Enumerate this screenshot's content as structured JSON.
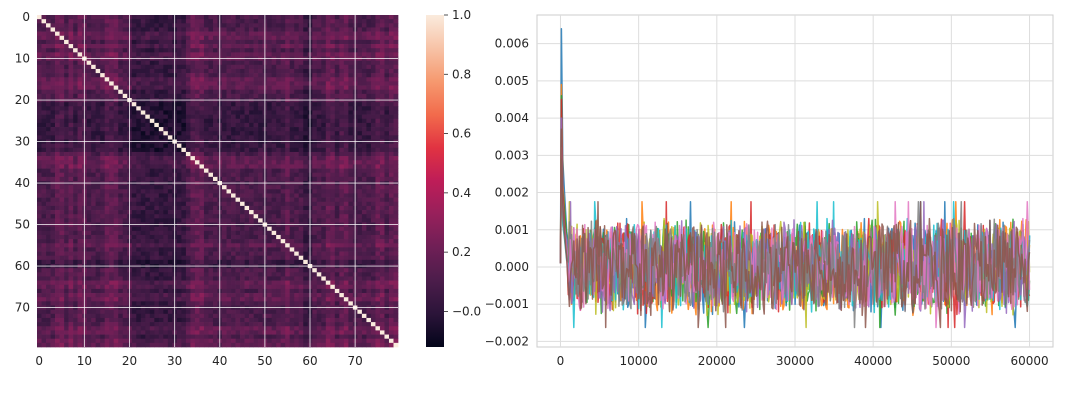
{
  "chart_data": [
    {
      "type": "heatmap",
      "description_rows": 80,
      "n": 80,
      "xticks": [
        "0",
        "10",
        "20",
        "30",
        "40",
        "50",
        "60",
        "70"
      ],
      "yticks": [
        "0",
        "10",
        "20",
        "30",
        "40",
        "50",
        "60",
        "70"
      ],
      "tick_values": [
        0,
        10,
        20,
        30,
        40,
        50,
        60,
        70
      ],
      "diagonal_value": 1.0,
      "colorbar": {
        "ticks": [
          "−0.0",
          "0.2",
          "0.4",
          "0.6",
          "0.8",
          "1.0"
        ],
        "tick_values": [
          0.0,
          0.2,
          0.4,
          0.6,
          0.8,
          1.0
        ],
        "vmin": -0.12,
        "vmax": 1.0
      },
      "high_columns": [
        4,
        5,
        7,
        9,
        10,
        15,
        16,
        17,
        34,
        35,
        36,
        55,
        64,
        65,
        67,
        68,
        75,
        76,
        78,
        79
      ],
      "low_columns": [
        21,
        22,
        23,
        24,
        25,
        26,
        27,
        28,
        29,
        30,
        31,
        32,
        59,
        60
      ],
      "grid": true
    },
    {
      "type": "line",
      "xticks": [
        "0",
        "10000",
        "20000",
        "30000",
        "40000",
        "50000",
        "60000"
      ],
      "x_tick_values": [
        0,
        10000,
        20000,
        30000,
        40000,
        50000,
        60000
      ],
      "yticks": [
        "−0.002",
        "−0.001",
        "0.000",
        "0.001",
        "0.002",
        "0.003",
        "0.004",
        "0.005",
        "0.006"
      ],
      "y_tick_values": [
        -0.002,
        -0.001,
        0.0,
        0.001,
        0.002,
        0.003,
        0.004,
        0.005,
        0.006
      ],
      "xlim": [
        -3000,
        63000
      ],
      "ylim": [
        -0.00215,
        0.00677
      ],
      "x_max": 60000,
      "peak_values": [
        0.0064,
        0.0049,
        0.0046,
        0.0045,
        0.004,
        0.0037,
        0.0032,
        0.0029,
        0.0027,
        0.0025
      ],
      "steady_range": [
        -0.0013,
        0.0013
      ],
      "series_colors": [
        "#1f77b4",
        "#ff7f0e",
        "#2ca02c",
        "#d62728",
        "#9467bd",
        "#8c564b",
        "#e377c2",
        "#7f7f7f",
        "#bcbd22",
        "#17becf"
      ],
      "grid": true
    }
  ]
}
